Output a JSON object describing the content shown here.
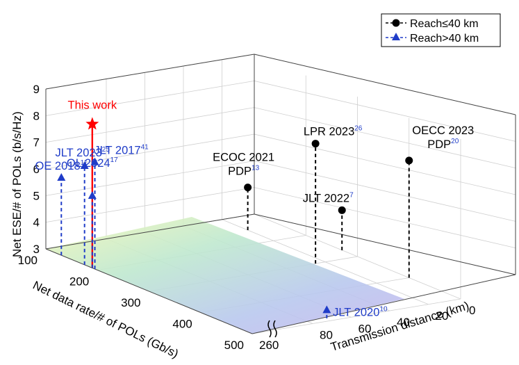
{
  "chart_data": {
    "type": "scatter",
    "projection": "3d",
    "axes": {
      "x": {
        "label": "Net data rate/# of POLs (Gb/s)",
        "ticks": [
          "100",
          "200",
          "300",
          "400",
          "500"
        ],
        "range": [
          100,
          500
        ]
      },
      "y": {
        "label": "Transmission distance (km)",
        "ticks": [
          "0",
          "20",
          "40",
          "60",
          "80",
          "260"
        ],
        "range": [
          0,
          260
        ],
        "axis_break": "between 80 and 260"
      },
      "z": {
        "label": "Net ESE/# of POLs (b/s/Hz)",
        "ticks": [
          "3",
          "4",
          "5",
          "6",
          "7",
          "8",
          "9"
        ],
        "range": [
          3,
          9
        ]
      }
    },
    "grid": true,
    "legend": {
      "position": "top-right",
      "entries": [
        {
          "label": "Reach≤40 km",
          "marker": "circle",
          "line": "dashed",
          "color": "#000000"
        },
        {
          "label": "Reach>40 km",
          "marker": "triangle",
          "line": "dashed",
          "color": "#1f3cc8"
        }
      ]
    },
    "points": [
      {
        "id": "this-work",
        "label": "This work",
        "ref": "",
        "series": "this-work",
        "marker": "star",
        "color": "#ff0000",
        "x": 190,
        "y": 260,
        "z": 8.4
      },
      {
        "id": "oe-2018",
        "label": "OE 2018",
        "ref": "11",
        "series": "reach-gt-40",
        "marker": "triangle",
        "color": "#1f3cc8",
        "x": 130,
        "y": 260,
        "z": 5.9
      },
      {
        "id": "jlt-2023",
        "label": "JLT 2023",
        "ref": "25",
        "series": "reach-gt-40",
        "marker": "triangle",
        "color": "#1f3cc8",
        "x": 175,
        "y": 260,
        "z": 6.7
      },
      {
        "id": "ol-2024",
        "label": "OL 2024",
        "ref": "17",
        "series": "reach-gt-40",
        "marker": "triangle",
        "color": "#1f3cc8",
        "x": 190,
        "y": 260,
        "z": 5.7
      },
      {
        "id": "jlt-2017",
        "label": "JLT 2017",
        "ref": "41",
        "series": "reach-gt-40",
        "marker": "triangle",
        "color": "#1f3cc8",
        "x": 195,
        "y": 260,
        "z": 7.0
      },
      {
        "id": "jlt-2020",
        "label": "JLT 2020",
        "ref": "10",
        "series": "reach-gt-40",
        "marker": "triangle",
        "color": "#1f3cc8",
        "x": 490,
        "y": 70,
        "z": 3.3
      },
      {
        "id": "ecoc-2021",
        "label": "ECOC 2021\nPDP",
        "ref": "13",
        "series": "reach-le-40",
        "marker": "circle",
        "color": "#000000",
        "x": 150,
        "y": 20,
        "z": 4.6
      },
      {
        "id": "lpr-2023",
        "label": "LPR 2023",
        "ref": "26",
        "series": "reach-le-40",
        "marker": "circle",
        "color": "#000000",
        "x": 300,
        "y": 25,
        "z": 7.5
      },
      {
        "id": "oecc-2023",
        "label": "OECC 2023\nPDP",
        "ref": "20",
        "series": "reach-le-40",
        "marker": "circle",
        "color": "#000000",
        "x": 400,
        "y": 0,
        "z": 7.4
      },
      {
        "id": "jlt-2022",
        "label": "JLT 2022",
        "ref": "7",
        "series": "reach-le-40",
        "marker": "circle",
        "color": "#000000",
        "x": 270,
        "y": 0,
        "z": 4.5
      }
    ]
  }
}
